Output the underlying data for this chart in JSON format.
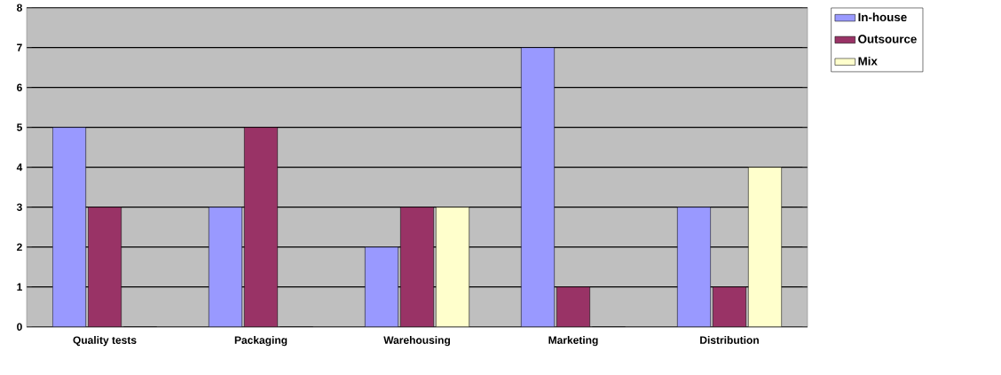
{
  "chart_data": {
    "type": "bar",
    "categories": [
      "Quality tests",
      "Packaging",
      "Warehousing",
      "Marketing",
      "Distribution"
    ],
    "series": [
      {
        "name": "In-house",
        "color": "#9999ff",
        "values": [
          5,
          3,
          2,
          7,
          3
        ]
      },
      {
        "name": "Outsource",
        "color": "#993366",
        "values": [
          3,
          5,
          3,
          1,
          1
        ]
      },
      {
        "name": "Mix",
        "color": "#ffffcc",
        "values": [
          0,
          0,
          3,
          0,
          4
        ]
      }
    ],
    "ylim": [
      0,
      8
    ],
    "yticks": [
      0,
      1,
      2,
      3,
      4,
      5,
      6,
      7,
      8
    ],
    "grid": "y",
    "legend": "top right"
  }
}
